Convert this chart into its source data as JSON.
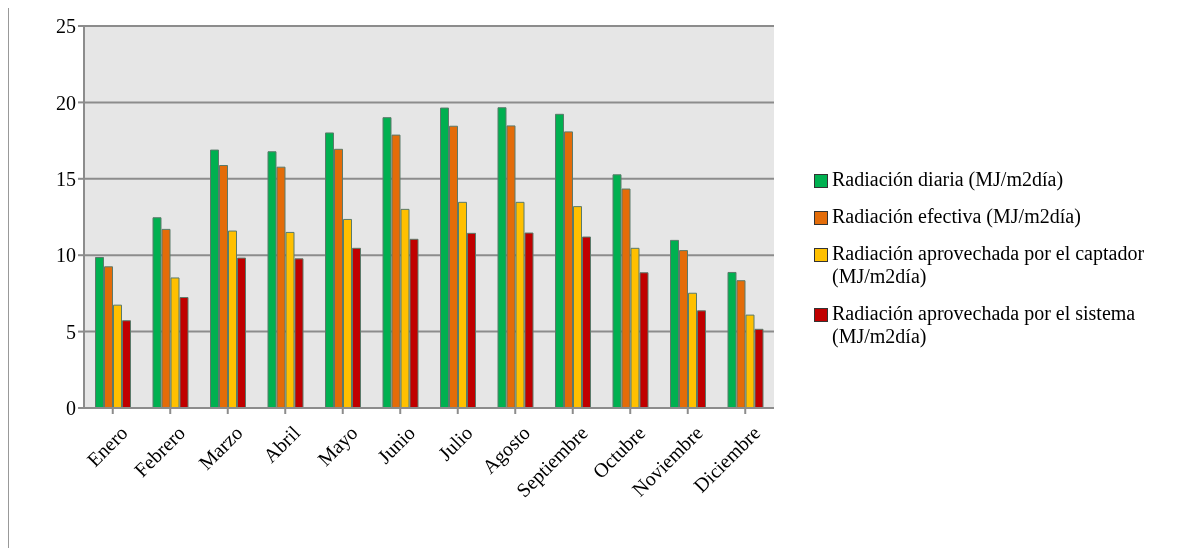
{
  "chart_data": {
    "type": "bar",
    "categories": [
      "Enero",
      "Febrero",
      "Marzo",
      "Abril",
      "Mayo",
      "Junio",
      "Julio",
      "Agosto",
      "Septiembre",
      "Octubre",
      "Noviembre",
      "Diciembre"
    ],
    "series": [
      {
        "name": "Radiación diaria (MJ/m2día)",
        "color": "#00b050",
        "values": [
          9.85,
          12.45,
          16.88,
          16.77,
          18.0,
          19.0,
          19.63,
          19.65,
          19.22,
          15.26,
          10.97,
          8.87
        ]
      },
      {
        "name": "Radiación efectiva (MJ/m2día)",
        "color": "#e36c09",
        "values": [
          9.24,
          11.69,
          15.87,
          15.76,
          16.93,
          17.86,
          18.44,
          18.46,
          18.07,
          14.33,
          10.3,
          8.33
        ]
      },
      {
        "name": "Radiación aprovechada por el captador (MJ/m2día)",
        "color": "#ffc000",
        "values": [
          6.73,
          8.51,
          11.58,
          11.49,
          12.34,
          13.0,
          13.46,
          13.46,
          13.18,
          10.45,
          7.51,
          6.08
        ]
      },
      {
        "name": "Radiación aprovechada por el sistema (MJ/m2día)",
        "color": "#c00000",
        "values": [
          5.71,
          7.23,
          9.81,
          9.76,
          10.45,
          11.04,
          11.43,
          11.45,
          11.19,
          8.85,
          6.36,
          5.15
        ]
      }
    ],
    "ylim": [
      0,
      25
    ],
    "yticks": [
      0,
      5,
      10,
      15,
      20,
      25
    ],
    "grid": "y",
    "legend": "right"
  }
}
